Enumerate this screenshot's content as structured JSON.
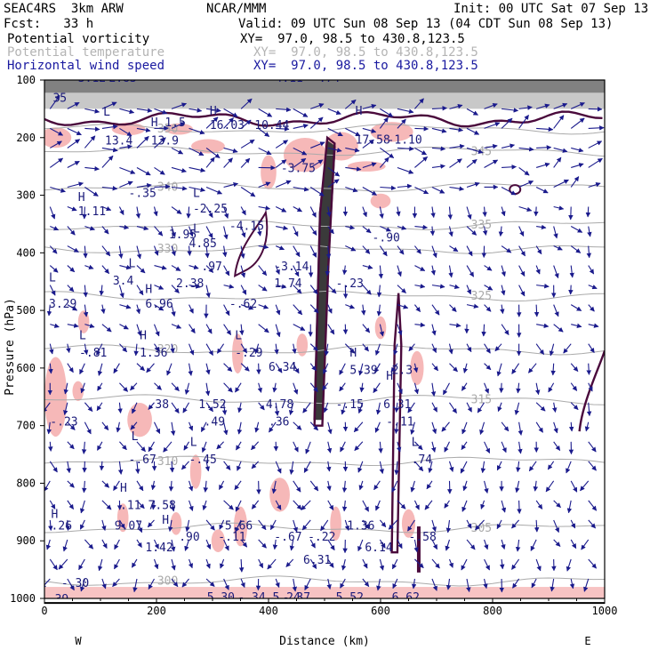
{
  "header": {
    "line1_left": "SEAC4RS  3km ARW",
    "line1_center": "NCAR/MMM",
    "line1_right": "Init: 00 UTC Sat 07 Sep 13",
    "line2_left": "Fcst:   33 h",
    "line2_right": "Valid: 09 UTC Sun 08 Sep 13 (04 CDT Sun 08 Sep 13)",
    "field1_name": "Potential vorticity",
    "field1_xy": "XY=  97.0, 98.5 to 430.8,123.5",
    "field2_name": "Potential temperature",
    "field2_xy": "XY=  97.0, 98.5 to 430.8,123.5",
    "field3_name": "Horizontal wind speed",
    "field3_xy": "XY=  97.0, 98.5 to 430.8,123.5"
  },
  "colors": {
    "pv_contour": "#4a0a3c",
    "pv_shading_dark": "#3a3a3a",
    "pink_shading": "#f6b8b8",
    "theta_contour": "#aaaaaa",
    "wind_barb": "#1a1a8c",
    "label": "#1a1a7a"
  },
  "chart_data": {
    "type": "cross-section",
    "xlabel": "Distance (km)",
    "ylabel": "Pressure (hPa)",
    "xlim": [
      0,
      1000
    ],
    "ylim": [
      1000,
      100
    ],
    "x_ticks": [
      "0",
      "200",
      "400",
      "600",
      "800",
      "1000"
    ],
    "y_ticks": [
      "100",
      "200",
      "300",
      "400",
      "500",
      "600",
      "700",
      "800",
      "900",
      "1000"
    ],
    "end_labels": {
      "left": "W",
      "right": "E"
    },
    "theta_contours": [
      {
        "p": 970,
        "label": "300"
      },
      {
        "p": 878,
        "label": "305"
      },
      {
        "p": 762,
        "label": "310"
      },
      {
        "p": 655,
        "label": "315"
      },
      {
        "p": 568,
        "label": "320"
      },
      {
        "p": 475,
        "label": "325"
      },
      {
        "p": 393,
        "label": "330"
      },
      {
        "p": 352,
        "label": "335"
      },
      {
        "p": 286,
        "label": "340"
      },
      {
        "p": 224,
        "label": "345"
      },
      {
        "p": 185,
        "label": "350"
      }
    ],
    "annotations": [
      {
        "x": 60,
        "p": 103,
        "text": "3.12"
      },
      {
        "x": 115,
        "p": 103,
        "text": "2.83"
      },
      {
        "x": 412,
        "p": 103,
        "text": "4.11"
      },
      {
        "x": 490,
        "p": 103,
        "text": ".74"
      },
      {
        "x": 15,
        "p": 138,
        "text": "35"
      },
      {
        "x": 60,
        "p": 310,
        "text": "H"
      },
      {
        "x": 60,
        "p": 335,
        "text": "1.11"
      },
      {
        "x": 105,
        "p": 162,
        "text": "L"
      },
      {
        "x": 108,
        "p": 212,
        "text": "13.4"
      },
      {
        "x": 190,
        "p": 180,
        "text": "H 1.5"
      },
      {
        "x": 190,
        "p": 212,
        "text": "13.9"
      },
      {
        "x": 150,
        "p": 303,
        "text": "-.35"
      },
      {
        "x": 265,
        "p": 303,
        "text": "L"
      },
      {
        "x": 265,
        "p": 330,
        "text": "-2.25"
      },
      {
        "x": 295,
        "p": 160,
        "text": "H"
      },
      {
        "x": 295,
        "p": 185,
        "text": "16.03"
      },
      {
        "x": 375,
        "p": 185,
        "text": "10.44"
      },
      {
        "x": 555,
        "p": 160,
        "text": "H"
      },
      {
        "x": 555,
        "p": 210,
        "text": "17.58"
      },
      {
        "x": 612,
        "p": 210,
        "text": "-1.10"
      },
      {
        "x": 422,
        "p": 260,
        "text": "-3.75"
      },
      {
        "x": 265,
        "p": 365,
        "text": "L"
      },
      {
        "x": 222,
        "p": 375,
        "text": "1.95"
      },
      {
        "x": 258,
        "p": 390,
        "text": "4.85"
      },
      {
        "x": 330,
        "p": 360,
        "text": "-4.15"
      },
      {
        "x": 585,
        "p": 380,
        "text": "-.90"
      },
      {
        "x": 150,
        "p": 425,
        "text": "L"
      },
      {
        "x": 122,
        "p": 455,
        "text": "3.4"
      },
      {
        "x": 235,
        "p": 460,
        "text": "2.38"
      },
      {
        "x": 280,
        "p": 430,
        "text": ".97"
      },
      {
        "x": 410,
        "p": 430,
        "text": "-3.14"
      },
      {
        "x": 410,
        "p": 460,
        "text": "1.74"
      },
      {
        "x": 520,
        "p": 460,
        "text": "-.23"
      },
      {
        "x": 8,
        "p": 450,
        "text": "L"
      },
      {
        "x": 8,
        "p": 495,
        "text": "3.29"
      },
      {
        "x": 180,
        "p": 470,
        "text": "H"
      },
      {
        "x": 180,
        "p": 495,
        "text": "6.96"
      },
      {
        "x": 330,
        "p": 495,
        "text": "-.62"
      },
      {
        "x": 62,
        "p": 550,
        "text": "L"
      },
      {
        "x": 62,
        "p": 580,
        "text": "-.81"
      },
      {
        "x": 170,
        "p": 550,
        "text": "H"
      },
      {
        "x": 170,
        "p": 580,
        "text": "1.36"
      },
      {
        "x": 340,
        "p": 550,
        "text": "L"
      },
      {
        "x": 340,
        "p": 580,
        "text": "-.29"
      },
      {
        "x": 400,
        "p": 605,
        "text": "6.34"
      },
      {
        "x": 545,
        "p": 580,
        "text": "H"
      },
      {
        "x": 545,
        "p": 610,
        "text": "5.39"
      },
      {
        "x": 610,
        "p": 620,
        "text": "H"
      },
      {
        "x": 620,
        "p": 610,
        "text": "2.3"
      },
      {
        "x": 185,
        "p": 670,
        "text": ".38"
      },
      {
        "x": 275,
        "p": 670,
        "text": "1.52"
      },
      {
        "x": 395,
        "p": 670,
        "text": "4.78"
      },
      {
        "x": 520,
        "p": 670,
        "text": "-.15"
      },
      {
        "x": 605,
        "p": 670,
        "text": "6.31"
      },
      {
        "x": 10,
        "p": 700,
        "text": "-.23"
      },
      {
        "x": 285,
        "p": 700,
        "text": ".49"
      },
      {
        "x": 400,
        "p": 700,
        "text": ".36"
      },
      {
        "x": 610,
        "p": 700,
        "text": "-.11"
      },
      {
        "x": 155,
        "p": 725,
        "text": "L"
      },
      {
        "x": 150,
        "p": 765,
        "text": "-.67"
      },
      {
        "x": 260,
        "p": 735,
        "text": "L"
      },
      {
        "x": 258,
        "p": 765,
        "text": "-.45"
      },
      {
        "x": 655,
        "p": 735,
        "text": "L"
      },
      {
        "x": 655,
        "p": 765,
        "text": ".74"
      },
      {
        "x": 135,
        "p": 815,
        "text": "H"
      },
      {
        "x": 135,
        "p": 845,
        "text": ".11"
      },
      {
        "x": 185,
        "p": 845,
        "text": "7.58"
      },
      {
        "x": 12,
        "p": 860,
        "text": "H"
      },
      {
        "x": 12,
        "p": 880,
        "text": ".26"
      },
      {
        "x": 125,
        "p": 880,
        "text": "9.07"
      },
      {
        "x": 210,
        "p": 870,
        "text": "H"
      },
      {
        "x": 322,
        "p": 880,
        "text": "5.66"
      },
      {
        "x": 540,
        "p": 880,
        "text": "1.36"
      },
      {
        "x": 240,
        "p": 900,
        "text": ".90"
      },
      {
        "x": 310,
        "p": 900,
        "text": "-.11"
      },
      {
        "x": 410,
        "p": 900,
        "text": "-.67"
      },
      {
        "x": 470,
        "p": 900,
        "text": "-.22"
      },
      {
        "x": 650,
        "p": 900,
        "text": "-.58"
      },
      {
        "x": 180,
        "p": 918,
        "text": "1.42"
      },
      {
        "x": 572,
        "p": 918,
        "text": "6.14"
      },
      {
        "x": 462,
        "p": 940,
        "text": "6.31"
      },
      {
        "x": 30,
        "p": 980,
        "text": "-.30"
      },
      {
        "x": 290,
        "p": 1005,
        "text": "5.30"
      },
      {
        "x": 345,
        "p": 1005,
        "text": "-.34 5.24"
      },
      {
        "x": 425,
        "p": 1005,
        "text": "-.37"
      },
      {
        "x": 520,
        "p": 1005,
        "text": "5.52"
      },
      {
        "x": 620,
        "p": 1005,
        "text": "6.62"
      },
      {
        "x": 6,
        "p": 1008,
        "text": ".39"
      }
    ]
  }
}
